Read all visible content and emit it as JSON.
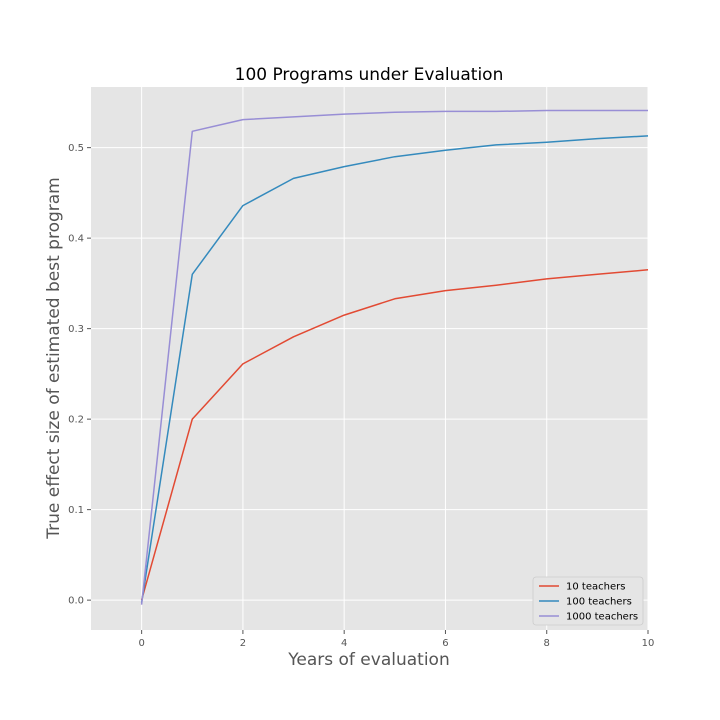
{
  "chart_data": {
    "type": "line",
    "title": "100 Programs under Evaluation",
    "xlabel": "Years of evaluation",
    "ylabel": "True effect size of estimated best program",
    "xlim": [
      -1,
      10
    ],
    "ylim": [
      -0.033,
      0.567
    ],
    "xticks": [
      0,
      2,
      4,
      6,
      8,
      10
    ],
    "xtick_labels": [
      "0",
      "2",
      "4",
      "6",
      "8",
      "10"
    ],
    "yticks": [
      0.0,
      0.1,
      0.2,
      0.3,
      0.4,
      0.5
    ],
    "ytick_labels": [
      "0.0",
      "0.1",
      "0.2",
      "0.3",
      "0.4",
      "0.5"
    ],
    "grid": true,
    "legend_position": "lower-right",
    "background": "#e5e5e5",
    "grid_color": "#ffffff",
    "x": [
      0,
      1,
      2,
      3,
      4,
      5,
      6,
      7,
      8,
      9,
      10
    ],
    "series": [
      {
        "name": "10 teachers",
        "color": "#e24a33",
        "values": [
          0.0,
          0.2,
          0.261,
          0.291,
          0.315,
          0.333,
          0.342,
          0.348,
          0.355,
          0.36,
          0.365
        ]
      },
      {
        "name": "100 teachers",
        "color": "#348abd",
        "values": [
          -0.003,
          0.36,
          0.436,
          0.466,
          0.479,
          0.49,
          0.497,
          0.503,
          0.506,
          0.51,
          0.513
        ]
      },
      {
        "name": "1000 teachers",
        "color": "#988ed5",
        "values": [
          -0.005,
          0.518,
          0.531,
          0.534,
          0.537,
          0.539,
          0.54,
          0.54,
          0.541,
          0.541,
          0.541
        ]
      }
    ]
  }
}
